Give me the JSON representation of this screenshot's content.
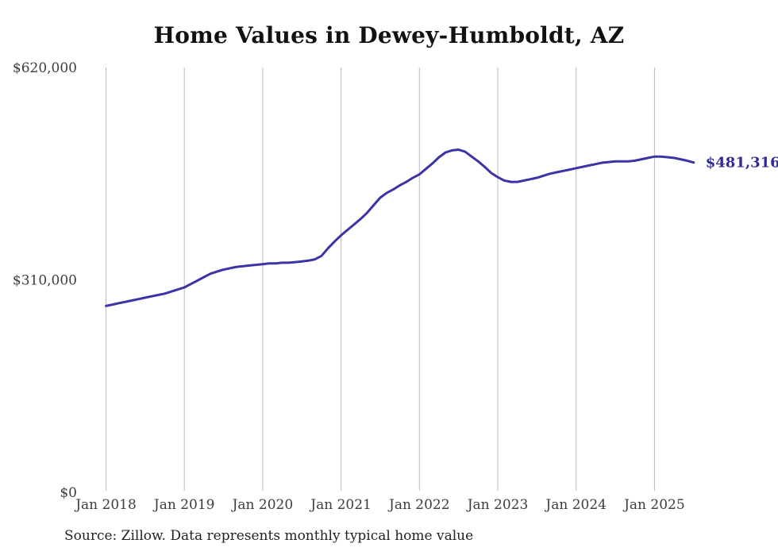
{
  "title": "Home Values in Dewey-Humboldt, AZ",
  "source_note": "Source: Zillow. Data represents monthly typical home value",
  "colors": {
    "line": "#3b34a6",
    "end_label": "#2f2a96",
    "gridline": "#b9b9b9",
    "axis_text": "#3d3d3d",
    "title_text": "#111111"
  },
  "chart_data": {
    "type": "line",
    "title": "Home Values in Dewey-Humboldt, AZ",
    "xlabel": "",
    "ylabel": "",
    "ylim": [
      0,
      620000
    ],
    "grid": "vertical-only",
    "legend": "none",
    "x_ticks": [
      "Jan 2018",
      "Jan 2019",
      "Jan 2020",
      "Jan 2021",
      "Jan 2022",
      "Jan 2023",
      "Jan 2024",
      "Jan 2025"
    ],
    "y_ticks": [
      {
        "label": "$0",
        "value": 0
      },
      {
        "label": "$310,000",
        "value": 310000
      },
      {
        "label": "$620,000",
        "value": 620000
      }
    ],
    "start_month": "Jan 2018",
    "end_month": "Jul 2025",
    "last_value_label": "$481,316",
    "series": [
      {
        "name": "Monthly typical home value",
        "values": [
          272000,
          274000,
          276000,
          278000,
          280000,
          282000,
          284000,
          286000,
          288000,
          290000,
          293000,
          296000,
          299000,
          304000,
          309000,
          314000,
          319000,
          322000,
          325000,
          327000,
          329000,
          330000,
          331000,
          332000,
          333000,
          334000,
          334000,
          335000,
          335000,
          336000,
          337000,
          338000,
          340000,
          345000,
          356000,
          366000,
          375000,
          383000,
          391000,
          399000,
          408000,
          419000,
          430000,
          437000,
          442000,
          448000,
          453000,
          459000,
          464000,
          472000,
          480000,
          489000,
          496000,
          499000,
          500000,
          497000,
          490000,
          483000,
          475000,
          466000,
          460000,
          455000,
          453000,
          453000,
          455000,
          457000,
          459000,
          462000,
          465000,
          467000,
          469000,
          471000,
          473000,
          475000,
          477000,
          479000,
          481000,
          482000,
          483000,
          483000,
          483000,
          484000,
          486000,
          488000,
          490000,
          490000,
          489000,
          488000,
          486000,
          484000,
          481316
        ]
      }
    ]
  }
}
